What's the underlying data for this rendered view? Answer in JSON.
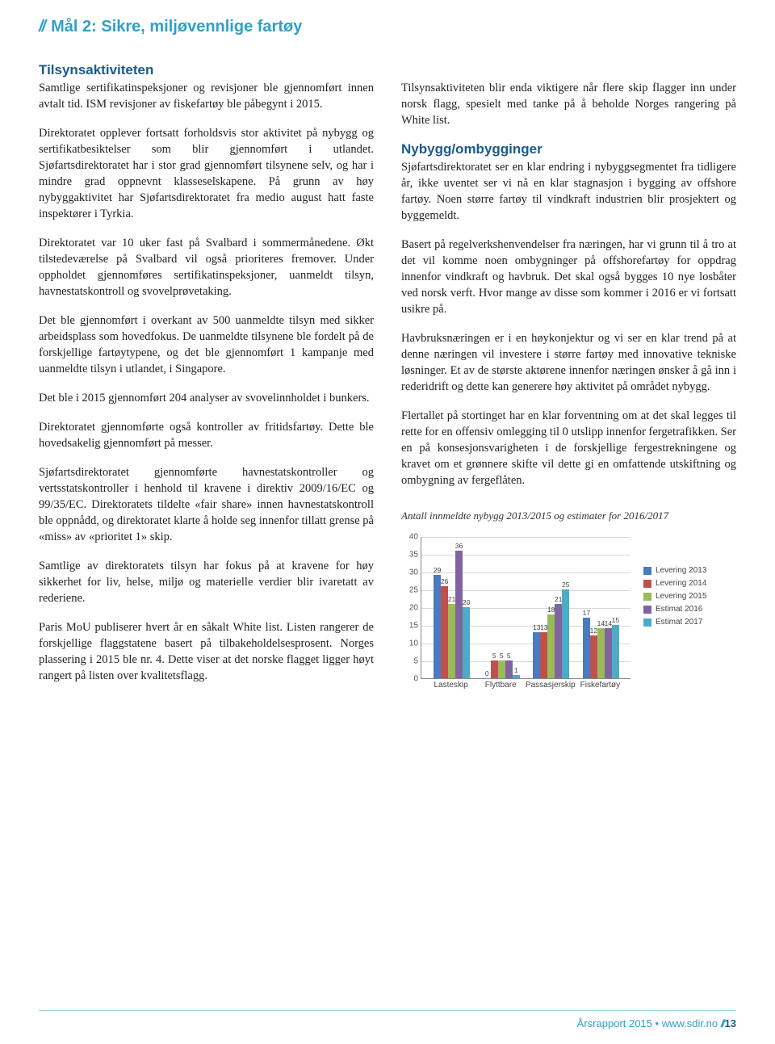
{
  "heading": "Mål 2: Sikre, miljøvennlige fartøy",
  "left": {
    "sub1": "Tilsynsaktiviteten",
    "p1": "Samtlige sertifikatinspeksjoner og revisjoner ble gjennomført innen avtalt tid. ISM revisjoner av fiskefartøy ble påbegynt i 2015.",
    "p2": "Direktoratet opplever fortsatt forholdsvis stor aktivitet på nybygg og sertifikatbesiktelser som blir gjennomført i utlandet. Sjøfartsdirektoratet har i stor grad gjennomført tilsynene selv, og har i mindre grad oppnevnt klasseselskapene. På grunn av høy nybyggaktivitet har Sjøfartsdirektoratet fra medio august hatt faste inspektører i Tyrkia.",
    "p3": "Direktoratet var 10 uker fast på Svalbard i sommermånedene. Økt tilstedeværelse på Svalbard vil også prioriteres fremover. Under oppholdet gjennomføres sertifikatinspeksjoner, uanmeldt tilsyn, havnestatskontroll og svovelprøvetaking.",
    "p4": "Det ble gjennomført i overkant av 500 uanmeldte tilsyn med sikker arbeidsplass som hovedfokus. De uanmeldte tilsynene ble fordelt på de forskjellige fartøytypene, og det ble gjennomført 1 kampanje med uanmeldte tilsyn i utlandet, i Singapore.",
    "p5": "Det ble i 2015 gjennomført 204 analyser av svovelinnholdet i bunkers.",
    "p6": "Direktoratet gjennomførte også kontroller av fritidsfartøy. Dette ble hovedsakelig gjennomført på messer.",
    "p7": "Sjøfartsdirektoratet gjennomførte havnestatskontroller og vertsstatskontroller i henhold til kravene i direktiv 2009/16/EC og 99/35/EC. Direktoratets tildelte «fair share» innen havnestatskontroll ble oppnådd, og direktoratet klarte å holde seg innenfor tillatt grense på «miss» av «prioritet 1» skip.",
    "p8": "Samtlige av direktoratets tilsyn har fokus på at kravene for høy sikkerhet for liv, helse, miljø og materielle verdier blir ivaretatt av rederiene.",
    "p9": "Paris MoU publiserer hvert år en såkalt White list. Listen rangerer de forskjellige flaggstatene basert på tilbakeholdelsesprosent. Norges plassering i 2015 ble nr. 4. Dette viser at det norske flagget ligger høyt rangert på listen over kvalitetsflagg."
  },
  "right": {
    "p1": "Tilsynsaktiviteten blir enda viktigere når flere skip flagger inn under norsk flagg, spesielt med tanke på å beholde Norges rangering på White list.",
    "sub2": "Nybygg/ombygginger",
    "p2": "Sjøfartsdirektoratet ser en klar endring i nybyggsegmentet fra tidligere år, ikke uventet ser vi nå en klar stagnasjon i bygging av offshore fartøy. Noen større fartøy til vindkraft industrien blir prosjektert og byggemeldt.",
    "p3": "Basert på regelverkshenvendelser fra næringen, har vi grunn til å tro at det vil komme noen ombygninger på offshorefartøy for oppdrag innenfor vindkraft og havbruk. Det skal også bygges 10 nye losbåter ved norsk verft. Hvor mange av disse som kommer i 2016 er vi fortsatt usikre på.",
    "p4": "Havbruksnæringen er i en høykonjektur og vi ser en klar trend på at denne næringen vil investere i større fartøy med innovative tekniske løsninger. Et av de største aktørene innenfor næringen ønsker å gå inn i rederidrift og dette kan generere høy aktivitet på området nybygg.",
    "p5": "Flertallet på stortinget har en klar forventning om at det skal legges til rette for en offensiv omlegging til 0 utslipp innenfor fergetrafikken. Ser en på konsesjonsvarigheten i de forskjellige fergestrekningene og kravet om et grønnere skifte vil dette gi en omfattende utskiftning og ombygning av fergeflåten."
  },
  "chart": {
    "caption": "Antall innmeldte nybygg 2013/2015 og estimater for 2016/2017",
    "type": "bar",
    "ylim_max": 40,
    "ytick_step": 5,
    "categories": [
      "Lasteskip",
      "Flyttbare",
      "Passasjerskip",
      "Fiskefartøy"
    ],
    "series": [
      {
        "label": "Levering 2013",
        "color": "#4a7bc0"
      },
      {
        "label": "Levering 2014",
        "color": "#c0504d"
      },
      {
        "label": "Levering 2015",
        "color": "#9bbb59"
      },
      {
        "label": "Estimat 2016",
        "color": "#8064a2"
      },
      {
        "label": "Estimat 2017",
        "color": "#4bacc6"
      }
    ],
    "data": [
      [
        29,
        26,
        21,
        36,
        20
      ],
      [
        0,
        5,
        5,
        5,
        1
      ],
      [
        13,
        13,
        18,
        21,
        25
      ],
      [
        17,
        12,
        14,
        14,
        15
      ]
    ],
    "axis_color": "#888888",
    "grid_color": "#d9d9d9",
    "label_fontsize": 10
  },
  "footer": {
    "text_left": "Årsrapport 2015",
    "text_mid": "www.sdir.no",
    "page": "13"
  }
}
